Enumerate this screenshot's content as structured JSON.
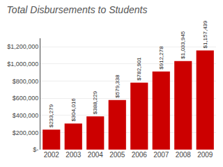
{
  "chart_data": {
    "type": "bar",
    "title": "Total Disbursements to Students",
    "categories": [
      "2002",
      "2003",
      "2004",
      "2005",
      "2006",
      "2007",
      "2008",
      "2009"
    ],
    "values": [
      233279,
      304016,
      388229,
      579338,
      782901,
      912278,
      1033945,
      1157439
    ],
    "value_labels": [
      "$233,279",
      "$304,016",
      "$388,229",
      "$579,338",
      "$782,901",
      "$912,278",
      "$1,033,945",
      "$1,157,439"
    ],
    "data_labels": true,
    "color": "#cc0000",
    "ylim": [
      0,
      1300000
    ],
    "yticks": [
      {
        "value": 0,
        "label": "$-"
      },
      {
        "value": 200000,
        "label": "$200,000"
      },
      {
        "value": 400000,
        "label": "$400,000"
      },
      {
        "value": 600000,
        "label": "$600,000"
      },
      {
        "value": 800000,
        "label": "$800,000"
      },
      {
        "value": 1000000,
        "label": "$1,000,000"
      },
      {
        "value": 1200000,
        "label": "$1,200,000"
      }
    ],
    "grid": true
  }
}
